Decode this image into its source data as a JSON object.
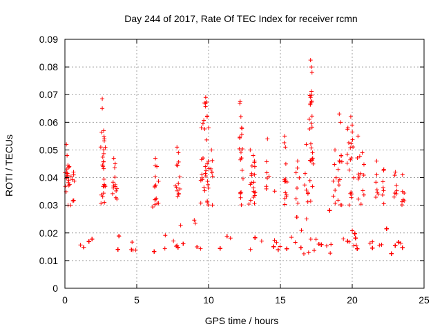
{
  "chart_data": {
    "type": "scatter",
    "title": "Day 244 of 2017, Rate Of TEC Index for receiver rcmn",
    "xlabel": "GPS time / hours",
    "ylabel": "ROTI / TECUs",
    "xlim": [
      0,
      25
    ],
    "ylim": [
      0,
      0.09
    ],
    "xticks": [
      0,
      5,
      10,
      15,
      20,
      25
    ],
    "yticks": [
      0,
      0.01,
      0.02,
      0.03,
      0.04,
      0.05,
      0.06,
      0.07,
      0.08,
      0.09
    ],
    "grid": true,
    "marker": "plus",
    "color": "#ff0000",
    "x_coverage": [
      0,
      23.7
    ],
    "gap": [
      5.0,
      5.6
    ],
    "dense_band": [
      0.007,
      0.025
    ],
    "spikes": [
      {
        "x": 0.1,
        "y": 0.052
      },
      {
        "x": 0.15,
        "y": 0.048
      },
      {
        "x": 0.3,
        "y": 0.044
      },
      {
        "x": 0.6,
        "y": 0.042
      },
      {
        "x": 2.6,
        "y": 0.0685
      },
      {
        "x": 2.6,
        "y": 0.065
      },
      {
        "x": 2.7,
        "y": 0.057
      },
      {
        "x": 2.75,
        "y": 0.054
      },
      {
        "x": 3.4,
        "y": 0.047
      },
      {
        "x": 3.5,
        "y": 0.045
      },
      {
        "x": 6.3,
        "y": 0.047
      },
      {
        "x": 6.4,
        "y": 0.044
      },
      {
        "x": 7.8,
        "y": 0.051
      },
      {
        "x": 7.9,
        "y": 0.049
      },
      {
        "x": 9.5,
        "y": 0.058
      },
      {
        "x": 9.7,
        "y": 0.067
      },
      {
        "x": 9.8,
        "y": 0.069
      },
      {
        "x": 9.9,
        "y": 0.062
      },
      {
        "x": 10.0,
        "y": 0.058
      },
      {
        "x": 10.2,
        "y": 0.05
      },
      {
        "x": 12.2,
        "y": 0.0675
      },
      {
        "x": 12.25,
        "y": 0.062
      },
      {
        "x": 12.3,
        "y": 0.058
      },
      {
        "x": 12.9,
        "y": 0.05
      },
      {
        "x": 13.1,
        "y": 0.048
      },
      {
        "x": 13.2,
        "y": 0.046
      },
      {
        "x": 14.1,
        "y": 0.054
      },
      {
        "x": 15.3,
        "y": 0.055
      },
      {
        "x": 15.35,
        "y": 0.051
      },
      {
        "x": 16.2,
        "y": 0.046
      },
      {
        "x": 16.8,
        "y": 0.052
      },
      {
        "x": 17.1,
        "y": 0.0825
      },
      {
        "x": 17.15,
        "y": 0.08
      },
      {
        "x": 17.2,
        "y": 0.078
      },
      {
        "x": 17.1,
        "y": 0.069
      },
      {
        "x": 18.8,
        "y": 0.05
      },
      {
        "x": 19.1,
        "y": 0.063
      },
      {
        "x": 19.2,
        "y": 0.06
      },
      {
        "x": 19.7,
        "y": 0.058
      },
      {
        "x": 19.9,
        "y": 0.062
      },
      {
        "x": 20.0,
        "y": 0.059
      },
      {
        "x": 20.4,
        "y": 0.055
      },
      {
        "x": 20.7,
        "y": 0.049
      },
      {
        "x": 21.7,
        "y": 0.046
      },
      {
        "x": 22.2,
        "y": 0.043
      },
      {
        "x": 23.0,
        "y": 0.042
      },
      {
        "x": 23.5,
        "y": 0.041
      }
    ]
  }
}
